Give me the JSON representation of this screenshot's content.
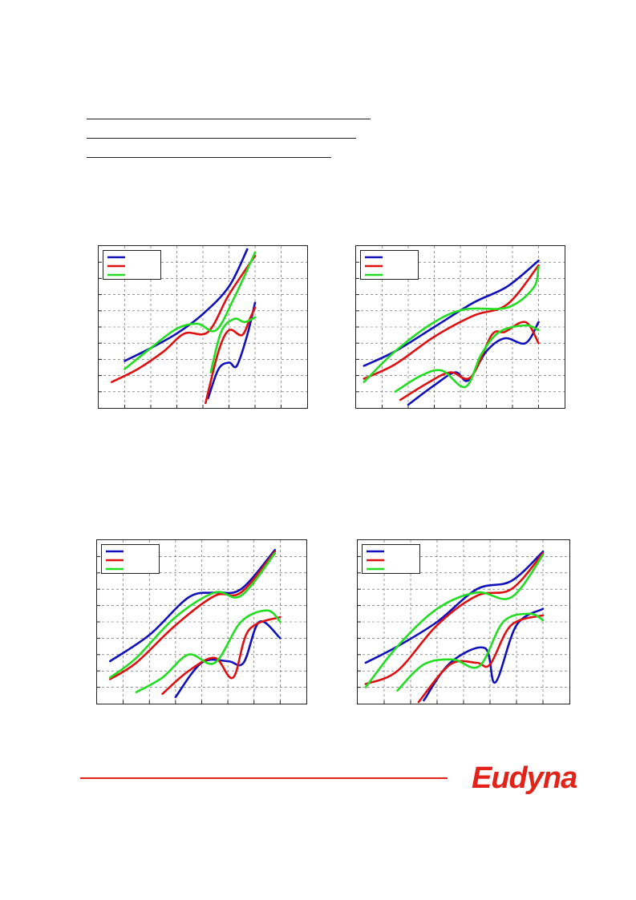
{
  "document": {
    "header_rules": 3
  },
  "footer": {
    "logo_text": "Eudyna",
    "brand_color": "#e2231a"
  },
  "chart_data": [
    {
      "type": "line",
      "grid": true,
      "legend_position": "top-left",
      "x_ticks": 8,
      "y_ticks": 10,
      "xlim": [
        0,
        8
      ],
      "ylim": [
        0,
        10
      ],
      "series": [
        {
          "color": "#1111bb",
          "values": [
            [
              1,
              2.9
            ],
            [
              2,
              3.7
            ],
            [
              3,
              4.6
            ],
            [
              4,
              5.8
            ],
            [
              5,
              7.5
            ],
            [
              5.7,
              9.8
            ]
          ]
        },
        {
          "color": "#dd1111",
          "values": [
            [
              0.5,
              1.6
            ],
            [
              1.5,
              2.4
            ],
            [
              2.5,
              3.5
            ],
            [
              3.3,
              4.6
            ],
            [
              4.2,
              4.7
            ],
            [
              5,
              7.0
            ],
            [
              6,
              9.4
            ]
          ]
        },
        {
          "color": "#22dd22",
          "values": [
            [
              1,
              2.4
            ],
            [
              2,
              3.7
            ],
            [
              3,
              4.9
            ],
            [
              3.8,
              5.2
            ],
            [
              4.5,
              4.8
            ],
            [
              5.2,
              6.8
            ],
            [
              6,
              9.6
            ]
          ]
        },
        {
          "color": "#1111bb",
          "values": [
            [
              4.2,
              0.6
            ],
            [
              4.6,
              2.4
            ],
            [
              5,
              2.8
            ],
            [
              5.3,
              2.6
            ],
            [
              5.7,
              4.5
            ],
            [
              6,
              6.5
            ]
          ]
        },
        {
          "color": "#dd1111",
          "values": [
            [
              4.1,
              0.3
            ],
            [
              4.6,
              3.5
            ],
            [
              5,
              4.8
            ],
            [
              5.5,
              4.5
            ],
            [
              5.8,
              5.5
            ],
            [
              6,
              6.2
            ]
          ]
        },
        {
          "color": "#22dd22",
          "values": [
            [
              4.3,
              2.2
            ],
            [
              4.7,
              4.7
            ],
            [
              5.2,
              5.5
            ],
            [
              5.6,
              5.3
            ],
            [
              6,
              5.6
            ]
          ]
        }
      ]
    },
    {
      "type": "line",
      "grid": true,
      "legend_position": "top-left",
      "x_ticks": 8,
      "y_ticks": 10,
      "xlim": [
        0,
        8
      ],
      "ylim": [
        0,
        10
      ],
      "series": [
        {
          "color": "#1111bb",
          "values": [
            [
              0.3,
              2.6
            ],
            [
              1.5,
              3.5
            ],
            [
              3,
              5.0
            ],
            [
              4.5,
              6.5
            ],
            [
              5.8,
              7.5
            ],
            [
              7,
              9.1
            ]
          ]
        },
        {
          "color": "#dd1111",
          "values": [
            [
              0.3,
              1.8
            ],
            [
              1.5,
              2.7
            ],
            [
              3,
              4.4
            ],
            [
              4.5,
              5.7
            ],
            [
              5.8,
              6.4
            ],
            [
              7,
              8.8
            ]
          ]
        },
        {
          "color": "#22dd22",
          "values": [
            [
              0.3,
              1.6
            ],
            [
              1.5,
              3.5
            ],
            [
              3,
              5.3
            ],
            [
              4.2,
              6.1
            ],
            [
              5.8,
              6.2
            ],
            [
              6.8,
              7.4
            ],
            [
              7,
              8.7
            ]
          ]
        },
        {
          "color": "#1111bb",
          "values": [
            [
              2,
              0.2
            ],
            [
              3,
              1.4
            ],
            [
              3.8,
              2.2
            ],
            [
              4.3,
              1.7
            ],
            [
              5,
              3.5
            ],
            [
              5.7,
              4.3
            ],
            [
              6.5,
              4.0
            ],
            [
              7,
              5.3
            ]
          ]
        },
        {
          "color": "#dd1111",
          "values": [
            [
              1.7,
              0.5
            ],
            [
              2.7,
              1.5
            ],
            [
              3.6,
              2.2
            ],
            [
              4.4,
              1.9
            ],
            [
              5.2,
              4.5
            ],
            [
              5.7,
              4.7
            ],
            [
              6.5,
              5.3
            ],
            [
              7,
              4.0
            ]
          ]
        },
        {
          "color": "#22dd22",
          "values": [
            [
              1.5,
              1.0
            ],
            [
              2.5,
              2.0
            ],
            [
              3.3,
              2.3
            ],
            [
              4.2,
              1.3
            ],
            [
              4.8,
              3.3
            ],
            [
              5.5,
              4.7
            ],
            [
              6.5,
              5.1
            ],
            [
              7,
              4.8
            ]
          ]
        }
      ]
    },
    {
      "type": "line",
      "grid": true,
      "legend_position": "top-left",
      "x_ticks": 8,
      "y_ticks": 10,
      "xlim": [
        0,
        8
      ],
      "ylim": [
        0,
        10
      ],
      "series": [
        {
          "color": "#1111bb",
          "values": [
            [
              0.5,
              2.6
            ],
            [
              2,
              4.2
            ],
            [
              3.5,
              6.5
            ],
            [
              4.5,
              6.8
            ],
            [
              5.5,
              7.0
            ],
            [
              6.8,
              9.4
            ]
          ]
        },
        {
          "color": "#dd1111",
          "values": [
            [
              0.5,
              1.5
            ],
            [
              1.5,
              2.5
            ],
            [
              3,
              4.8
            ],
            [
              4.5,
              6.6
            ],
            [
              5.5,
              6.8
            ],
            [
              6.8,
              9.3
            ]
          ]
        },
        {
          "color": "#22dd22",
          "values": [
            [
              0.5,
              1.6
            ],
            [
              1.5,
              2.8
            ],
            [
              3,
              5.3
            ],
            [
              4.5,
              6.8
            ],
            [
              5.5,
              6.6
            ],
            [
              6.8,
              9.2
            ]
          ]
        },
        {
          "color": "#1111bb",
          "values": [
            [
              3,
              0.4
            ],
            [
              4,
              2.5
            ],
            [
              5,
              2.6
            ],
            [
              5.6,
              2.5
            ],
            [
              6.2,
              5.0
            ],
            [
              7,
              4.0
            ]
          ]
        },
        {
          "color": "#dd1111",
          "values": [
            [
              2.5,
              0.6
            ],
            [
              3.5,
              2.0
            ],
            [
              4.5,
              2.8
            ],
            [
              5.2,
              1.6
            ],
            [
              5.8,
              4.5
            ],
            [
              7,
              5.3
            ]
          ]
        },
        {
          "color": "#22dd22",
          "values": [
            [
              1.5,
              0.7
            ],
            [
              2.5,
              1.6
            ],
            [
              3.5,
              3.0
            ],
            [
              4.5,
              2.5
            ],
            [
              5.5,
              5.0
            ],
            [
              6.5,
              5.7
            ],
            [
              7,
              5.0
            ]
          ]
        }
      ]
    },
    {
      "type": "line",
      "grid": true,
      "legend_position": "top-left",
      "x_ticks": 8,
      "y_ticks": 10,
      "xlim": [
        0,
        8
      ],
      "ylim": [
        0,
        10
      ],
      "series": [
        {
          "color": "#1111bb",
          "values": [
            [
              0.3,
              2.5
            ],
            [
              1.5,
              3.5
            ],
            [
              3,
              5.0
            ],
            [
              4.5,
              7.0
            ],
            [
              5.8,
              7.5
            ],
            [
              7,
              9.3
            ]
          ]
        },
        {
          "color": "#dd1111",
          "values": [
            [
              0.3,
              1.2
            ],
            [
              1.5,
              2.0
            ],
            [
              3,
              4.8
            ],
            [
              4.5,
              6.6
            ],
            [
              5.8,
              7.0
            ],
            [
              7,
              9.2
            ]
          ]
        },
        {
          "color": "#22dd22",
          "values": [
            [
              0.3,
              1.0
            ],
            [
              1.5,
              3.5
            ],
            [
              3,
              5.8
            ],
            [
              4.5,
              6.8
            ],
            [
              5.8,
              6.5
            ],
            [
              7,
              9.1
            ]
          ]
        },
        {
          "color": "#1111bb",
          "values": [
            [
              2.5,
              0.2
            ],
            [
              3.5,
              2.5
            ],
            [
              4.8,
              3.4
            ],
            [
              5.2,
              1.3
            ],
            [
              6,
              4.8
            ],
            [
              7,
              5.8
            ]
          ]
        },
        {
          "color": "#dd1111",
          "values": [
            [
              2.3,
              0.1
            ],
            [
              3.5,
              2.4
            ],
            [
              4.5,
              2.5
            ],
            [
              5,
              2.4
            ],
            [
              5.8,
              4.8
            ],
            [
              7,
              5.4
            ]
          ]
        },
        {
          "color": "#22dd22",
          "values": [
            [
              1.5,
              0.8
            ],
            [
              2.5,
              2.4
            ],
            [
              3.6,
              2.7
            ],
            [
              4.6,
              2.3
            ],
            [
              5.5,
              5.0
            ],
            [
              6.5,
              5.5
            ],
            [
              7,
              5.1
            ]
          ]
        }
      ]
    }
  ]
}
